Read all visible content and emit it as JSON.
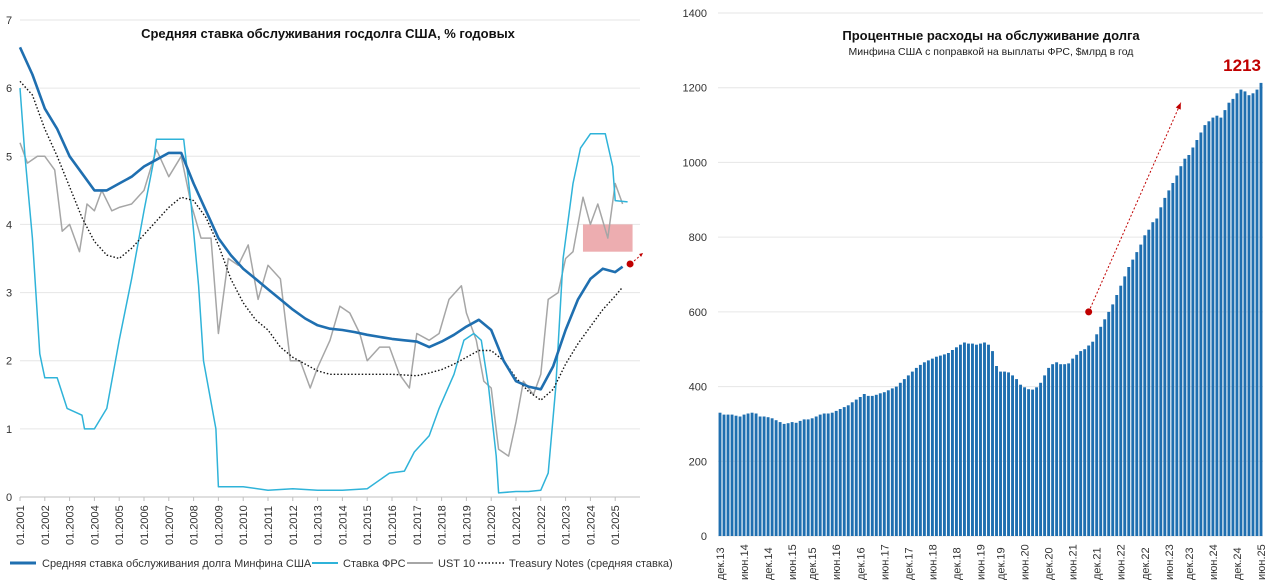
{
  "chart_data": [
    {
      "type": "line",
      "title": "Средняя ставка обслуживания госдолга США, % годовых",
      "ylim": [
        0,
        7
      ],
      "yticks": [
        0,
        1,
        2,
        3,
        4,
        5,
        6,
        7
      ],
      "xlim": [
        2001.0,
        2026.0
      ],
      "xtick_labels": [
        "01.2001",
        "01.2002",
        "01.2003",
        "01.2004",
        "01.2005",
        "01.2006",
        "01.2007",
        "01.2008",
        "01.2009",
        "01.2010",
        "01.2011",
        "01.2012",
        "01.2013",
        "01.2014",
        "01.2015",
        "01.2016",
        "01.2017",
        "01.2018",
        "01.2019",
        "01.2020",
        "01.2021",
        "01.2022",
        "01.2023",
        "01.2024",
        "01.2025"
      ],
      "series": [
        {
          "name": "Средняя ставка обслуживания долга Минфина США",
          "color": "#1f6fb0",
          "style": "solid-thick",
          "x": [
            2001.0,
            2001.5,
            2002.0,
            2002.5,
            2003.0,
            2003.5,
            2004.0,
            2004.5,
            2005.0,
            2005.5,
            2006.0,
            2006.5,
            2007.0,
            2007.5,
            2008.0,
            2008.5,
            2009.0,
            2009.5,
            2010.0,
            2010.5,
            2011.0,
            2011.5,
            2012.0,
            2012.5,
            2013.0,
            2013.5,
            2014.0,
            2014.5,
            2015.0,
            2015.5,
            2016.0,
            2016.5,
            2017.0,
            2017.5,
            2018.0,
            2018.5,
            2019.0,
            2019.5,
            2020.0,
            2020.5,
            2021.0,
            2021.5,
            2022.0,
            2022.5,
            2023.0,
            2023.5,
            2024.0,
            2024.5,
            2025.0,
            2025.3
          ],
          "y": [
            6.6,
            6.2,
            5.7,
            5.4,
            5.0,
            4.75,
            4.5,
            4.5,
            4.6,
            4.7,
            4.85,
            4.95,
            5.05,
            5.05,
            4.6,
            4.2,
            3.8,
            3.55,
            3.35,
            3.2,
            3.05,
            2.9,
            2.75,
            2.62,
            2.52,
            2.47,
            2.45,
            2.42,
            2.38,
            2.35,
            2.32,
            2.3,
            2.28,
            2.2,
            2.28,
            2.38,
            2.5,
            2.6,
            2.45,
            2.0,
            1.7,
            1.62,
            1.58,
            1.92,
            2.45,
            2.9,
            3.2,
            3.35,
            3.3,
            3.38
          ]
        },
        {
          "name": "Ставка ФРС",
          "color": "#2fb3d9",
          "style": "solid",
          "x": [
            2001.0,
            2001.2,
            2001.5,
            2001.8,
            2002.0,
            2002.5,
            2002.9,
            2003.5,
            2003.6,
            2004.0,
            2004.5,
            2005.0,
            2005.5,
            2006.0,
            2006.4,
            2006.5,
            2007.0,
            2007.6,
            2007.9,
            2008.2,
            2008.4,
            2008.9,
            2009.0,
            2010.0,
            2011.0,
            2012.0,
            2013.0,
            2014.0,
            2015.0,
            2015.9,
            2016.5,
            2016.9,
            2017.5,
            2017.9,
            2018.5,
            2018.9,
            2019.3,
            2019.6,
            2019.9,
            2020.2,
            2020.3,
            2021.0,
            2021.5,
            2022.0,
            2022.3,
            2022.6,
            2022.9,
            2023.3,
            2023.6,
            2024.0,
            2024.6,
            2024.9,
            2025.0,
            2025.5
          ],
          "y": [
            6.0,
            5.0,
            3.8,
            2.1,
            1.75,
            1.75,
            1.3,
            1.2,
            1.0,
            1.0,
            1.3,
            2.3,
            3.2,
            4.2,
            4.95,
            5.25,
            5.25,
            5.25,
            4.3,
            3.1,
            2.0,
            1.0,
            0.15,
            0.15,
            0.1,
            0.12,
            0.1,
            0.1,
            0.12,
            0.35,
            0.38,
            0.66,
            0.9,
            1.3,
            1.8,
            2.3,
            2.4,
            2.3,
            1.6,
            0.6,
            0.06,
            0.08,
            0.08,
            0.1,
            0.35,
            1.6,
            3.5,
            4.6,
            5.12,
            5.33,
            5.33,
            4.85,
            4.35,
            4.33
          ]
        },
        {
          "name": "UST 10",
          "color": "#a6a6a6",
          "style": "solid",
          "x": [
            2001.0,
            2001.3,
            2001.7,
            2002.0,
            2002.4,
            2002.7,
            2003.0,
            2003.4,
            2003.7,
            2004.0,
            2004.3,
            2004.7,
            2005.0,
            2005.5,
            2006.0,
            2006.5,
            2007.0,
            2007.5,
            2007.9,
            2008.3,
            2008.7,
            2009.0,
            2009.4,
            2009.8,
            2010.2,
            2010.6,
            2011.0,
            2011.5,
            2011.9,
            2012.3,
            2012.7,
            2013.0,
            2013.5,
            2013.9,
            2014.3,
            2014.7,
            2015.0,
            2015.5,
            2015.9,
            2016.3,
            2016.7,
            2017.0,
            2017.5,
            2017.9,
            2018.3,
            2018.8,
            2019.0,
            2019.4,
            2019.7,
            2020.0,
            2020.3,
            2020.7,
            2021.0,
            2021.3,
            2021.7,
            2022.0,
            2022.3,
            2022.7,
            2023.0,
            2023.3,
            2023.7,
            2024.0,
            2024.3,
            2024.7,
            2025.0,
            2025.3
          ],
          "y": [
            5.2,
            4.9,
            5.0,
            5.0,
            4.8,
            3.9,
            4.0,
            3.6,
            4.3,
            4.2,
            4.5,
            4.2,
            4.25,
            4.3,
            4.5,
            5.1,
            4.7,
            5.0,
            4.3,
            3.8,
            3.8,
            2.4,
            3.5,
            3.4,
            3.7,
            2.9,
            3.4,
            3.2,
            2.0,
            2.0,
            1.6,
            1.9,
            2.3,
            2.8,
            2.7,
            2.4,
            2.0,
            2.2,
            2.2,
            1.8,
            1.6,
            2.4,
            2.3,
            2.4,
            2.9,
            3.1,
            2.7,
            2.3,
            1.7,
            1.6,
            0.7,
            0.6,
            1.1,
            1.7,
            1.5,
            1.8,
            2.9,
            3.0,
            3.5,
            3.6,
            4.4,
            4.0,
            4.3,
            3.8,
            4.6,
            4.3
          ]
        },
        {
          "name": "Treasury Notes (средняя ставка)",
          "color": "#111111",
          "style": "dotted",
          "x": [
            2001.0,
            2001.5,
            2002.0,
            2002.5,
            2003.0,
            2003.5,
            2004.0,
            2004.5,
            2005.0,
            2005.5,
            2006.0,
            2006.5,
            2007.0,
            2007.5,
            2008.0,
            2008.5,
            2009.0,
            2009.5,
            2010.0,
            2010.5,
            2011.0,
            2011.5,
            2012.0,
            2012.5,
            2013.0,
            2013.5,
            2014.0,
            2015.0,
            2016.0,
            2017.0,
            2017.5,
            2018.0,
            2018.5,
            2019.0,
            2019.5,
            2020.0,
            2020.5,
            2021.0,
            2021.5,
            2022.0,
            2022.5,
            2023.0,
            2023.5,
            2024.0,
            2024.5,
            2025.0,
            2025.3
          ],
          "y": [
            6.1,
            5.9,
            5.4,
            5.0,
            4.55,
            4.1,
            3.75,
            3.55,
            3.5,
            3.65,
            3.85,
            4.05,
            4.25,
            4.4,
            4.35,
            4.1,
            3.7,
            3.2,
            2.85,
            2.6,
            2.45,
            2.2,
            2.05,
            1.95,
            1.85,
            1.8,
            1.8,
            1.8,
            1.8,
            1.78,
            1.82,
            1.87,
            1.95,
            2.05,
            2.15,
            2.15,
            2.0,
            1.75,
            1.55,
            1.42,
            1.58,
            1.95,
            2.25,
            2.5,
            2.75,
            2.95,
            3.08
          ]
        }
      ],
      "projection_box": {
        "x": [
          2023.7,
          2025.7
        ],
        "y": [
          3.6,
          4.0
        ],
        "color": "#e8999c"
      },
      "marker": {
        "x": 2025.6,
        "y": 3.42,
        "color": "#c00000"
      },
      "legend_position": "bottom"
    },
    {
      "type": "bar",
      "title": "Процентные расходы на обслуживание долга",
      "subtitle": "Минфина США с поправкой на выплаты ФРС, $млрд в год",
      "color": "#1f6fb0",
      "ylim": [
        0,
        1400
      ],
      "yticks": [
        0,
        200,
        400,
        600,
        800,
        1000,
        1200,
        1400
      ],
      "annotation": "1213",
      "annotation_color": "#c00000",
      "xtick_labels": [
        "дек.13",
        "июн.14",
        "дек.14",
        "июн.15",
        "дек.15",
        "июн.16",
        "дек.16",
        "июн.17",
        "дек.17",
        "июн.18",
        "дек.18",
        "июн.19",
        "дек.19",
        "июн.20",
        "дек.20",
        "июн.21",
        "дек.21",
        "июн.22",
        "дек.22",
        "июн.23",
        "дек.23",
        "июн.24",
        "дек.24",
        "июн.25"
      ],
      "values": [
        330,
        325,
        325,
        325,
        322,
        320,
        325,
        328,
        330,
        328,
        320,
        320,
        318,
        315,
        310,
        305,
        300,
        302,
        305,
        303,
        308,
        312,
        312,
        315,
        320,
        325,
        328,
        328,
        330,
        335,
        340,
        345,
        350,
        358,
        365,
        372,
        380,
        375,
        375,
        378,
        382,
        385,
        390,
        395,
        400,
        410,
        420,
        430,
        440,
        450,
        458,
        465,
        470,
        475,
        480,
        483,
        486,
        490,
        498,
        505,
        512,
        518,
        515,
        515,
        512,
        515,
        518,
        512,
        495,
        455,
        440,
        440,
        438,
        430,
        420,
        405,
        398,
        393,
        392,
        398,
        410,
        430,
        450,
        460,
        465,
        460,
        460,
        462,
        475,
        485,
        495,
        500,
        510,
        520,
        540,
        560,
        580,
        600,
        620,
        645,
        670,
        695,
        720,
        740,
        760,
        780,
        805,
        820,
        840,
        850,
        880,
        905,
        925,
        945,
        965,
        990,
        1010,
        1020,
        1040,
        1060,
        1080,
        1100,
        1110,
        1120,
        1125,
        1120,
        1140,
        1160,
        1170,
        1185,
        1195,
        1190,
        1180,
        1185,
        1195,
        1213
      ],
      "trend_arrow_from": {
        "index": 92,
        "value": 600
      },
      "trend_arrow_to": {
        "index": 115,
        "value": 1160
      }
    }
  ]
}
